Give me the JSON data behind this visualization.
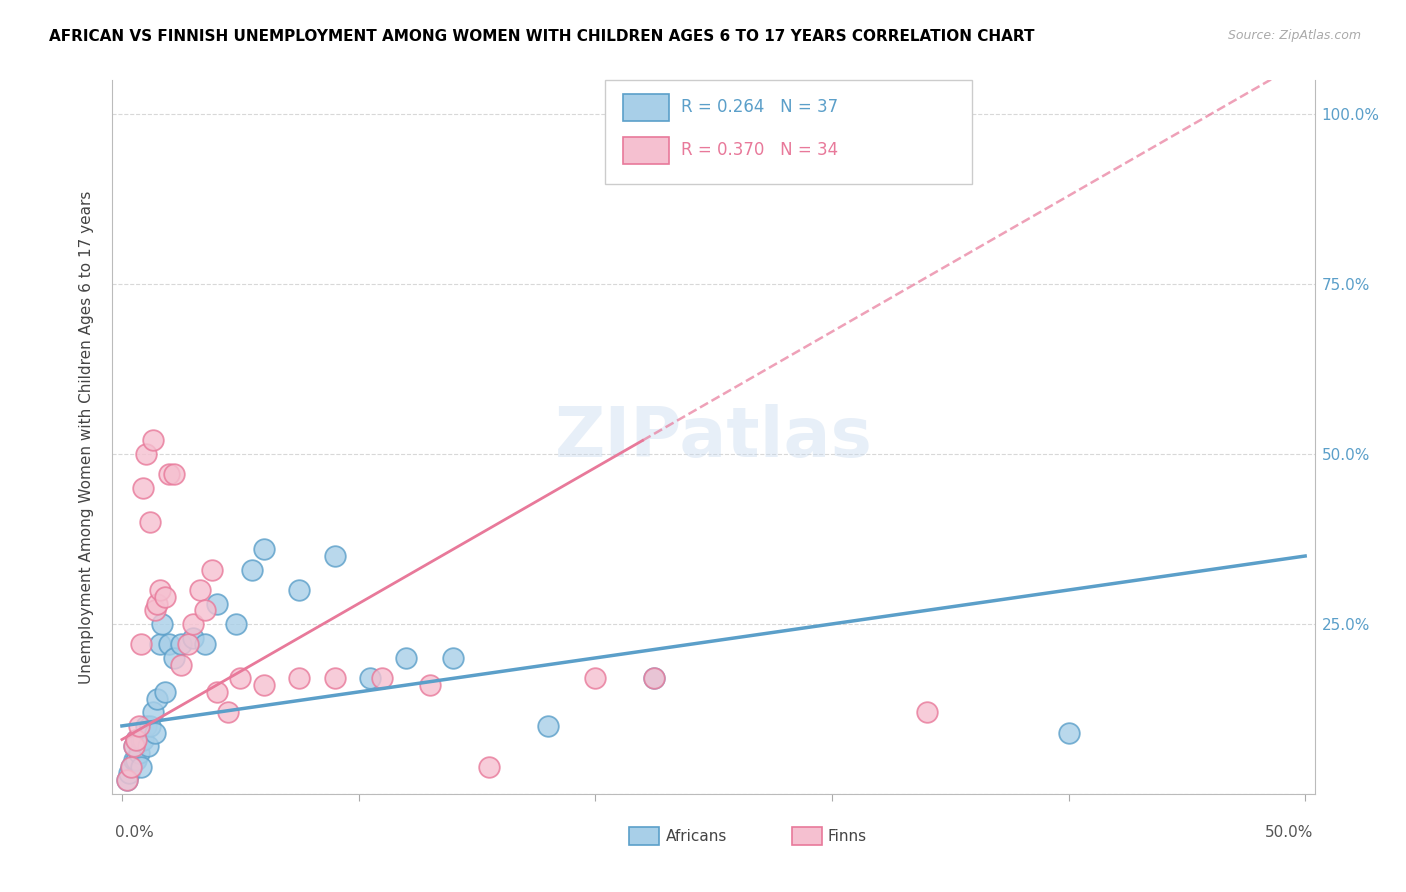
{
  "title": "AFRICAN VS FINNISH UNEMPLOYMENT AMONG WOMEN WITH CHILDREN AGES 6 TO 17 YEARS CORRELATION CHART",
  "source": "Source: ZipAtlas.com",
  "ylabel": "Unemployment Among Women with Children Ages 6 to 17 years",
  "xlim": [
    0.0,
    0.5
  ],
  "ylim": [
    0.0,
    1.05
  ],
  "africans_R": 0.264,
  "africans_N": 37,
  "finns_R": 0.37,
  "finns_N": 34,
  "color_africans_fill": "#a8cfe8",
  "color_africans_edge": "#5b9fc9",
  "color_africans_line": "#5b9fc9",
  "color_finns_fill": "#f5c0d0",
  "color_finns_edge": "#e8799a",
  "color_finns_line": "#e8799a",
  "africans_x": [
    0.002,
    0.003,
    0.004,
    0.005,
    0.005,
    0.006,
    0.006,
    0.007,
    0.008,
    0.008,
    0.009,
    0.01,
    0.011,
    0.012,
    0.013,
    0.014,
    0.015,
    0.016,
    0.017,
    0.018,
    0.02,
    0.022,
    0.025,
    0.03,
    0.035,
    0.04,
    0.048,
    0.055,
    0.06,
    0.075,
    0.09,
    0.105,
    0.12,
    0.14,
    0.18,
    0.225,
    0.4
  ],
  "africans_y": [
    0.02,
    0.03,
    0.04,
    0.05,
    0.07,
    0.05,
    0.08,
    0.06,
    0.04,
    0.08,
    0.08,
    0.1,
    0.07,
    0.1,
    0.12,
    0.09,
    0.14,
    0.22,
    0.25,
    0.15,
    0.22,
    0.2,
    0.22,
    0.23,
    0.22,
    0.28,
    0.25,
    0.33,
    0.36,
    0.3,
    0.35,
    0.17,
    0.2,
    0.2,
    0.1,
    0.17,
    0.09
  ],
  "finns_x": [
    0.002,
    0.004,
    0.005,
    0.006,
    0.007,
    0.008,
    0.009,
    0.01,
    0.012,
    0.013,
    0.014,
    0.015,
    0.016,
    0.018,
    0.02,
    0.022,
    0.025,
    0.028,
    0.03,
    0.033,
    0.035,
    0.038,
    0.04,
    0.045,
    0.05,
    0.06,
    0.075,
    0.09,
    0.11,
    0.13,
    0.155,
    0.2,
    0.225,
    0.34
  ],
  "finns_y": [
    0.02,
    0.04,
    0.07,
    0.08,
    0.1,
    0.22,
    0.45,
    0.5,
    0.4,
    0.52,
    0.27,
    0.28,
    0.3,
    0.29,
    0.47,
    0.47,
    0.19,
    0.22,
    0.25,
    0.3,
    0.27,
    0.33,
    0.15,
    0.12,
    0.17,
    0.16,
    0.17,
    0.17,
    0.17,
    0.16,
    0.04,
    0.17,
    0.17,
    0.12
  ]
}
